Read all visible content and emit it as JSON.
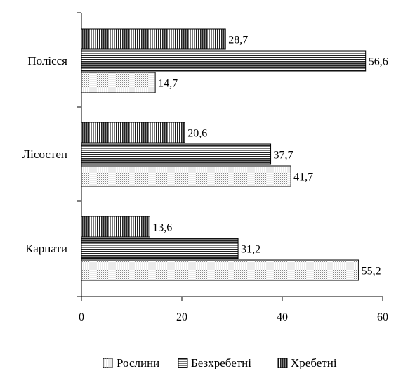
{
  "chart_data": {
    "type": "bar",
    "orientation": "horizontal",
    "categories": [
      "Полісся",
      "Лісостеп",
      "Карпати"
    ],
    "series": [
      {
        "name": "Рослини",
        "values": [
          14.7,
          41.7,
          55.2
        ],
        "labels": [
          "14,7",
          "41,7",
          "55,2"
        ],
        "pattern": "dots"
      },
      {
        "name": "Безхребетні",
        "values": [
          56.6,
          37.7,
          31.2
        ],
        "labels": [
          "56,6",
          "37,7",
          "31,2"
        ],
        "pattern": "horizontal-lines"
      },
      {
        "name": "Хребетні",
        "values": [
          28.7,
          20.6,
          13.6
        ],
        "labels": [
          "28,7",
          "20,6",
          "13,6"
        ],
        "pattern": "vertical-lines"
      }
    ],
    "xlim": [
      0,
      60
    ],
    "xticks": [
      "0",
      "20",
      "40",
      "60"
    ],
    "grid": false,
    "legend_position": "bottom",
    "title": "",
    "xlabel": "",
    "ylabel": ""
  }
}
